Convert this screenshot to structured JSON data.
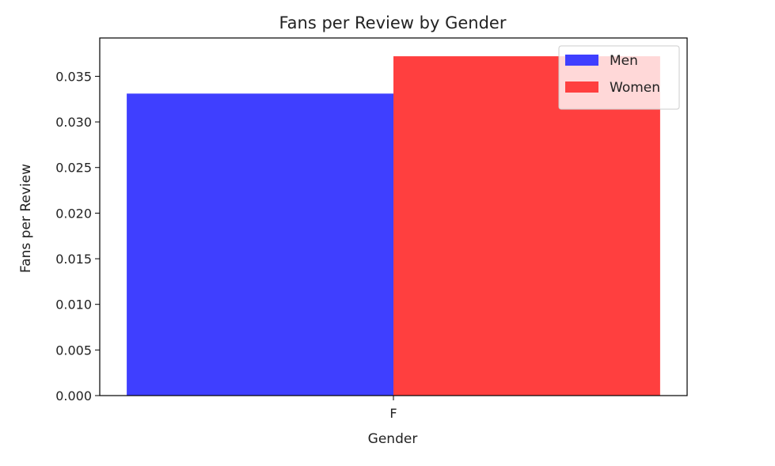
{
  "chart_data": {
    "type": "bar",
    "title": "Fans per Review by Gender",
    "xlabel": "Gender",
    "ylabel": "Fans per Review",
    "categories": [
      "F"
    ],
    "series": [
      {
        "name": "Men",
        "values": [
          0.0331
        ],
        "color": "#3f3fff"
      },
      {
        "name": "Women",
        "values": [
          0.0372
        ],
        "color": "#ff3f3f"
      }
    ],
    "ylim": [
      0,
      0.0392
    ],
    "yticks": [
      "0.000",
      "0.005",
      "0.010",
      "0.015",
      "0.020",
      "0.025",
      "0.030",
      "0.035"
    ],
    "ytick_values": [
      0,
      0.005,
      0.01,
      0.015,
      0.02,
      0.025,
      0.03,
      0.035
    ],
    "grid": false,
    "legend": "top-right"
  }
}
